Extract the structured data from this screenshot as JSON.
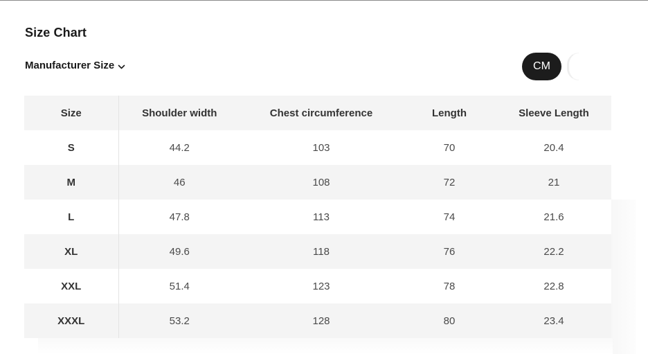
{
  "title": "Size Chart",
  "size_selector": {
    "label": "Manufacturer Size",
    "icon": "chevron-down-icon"
  },
  "unit_toggle": {
    "active_label": "CM",
    "active_bg": "#1c1c1c",
    "active_color": "#ffffff"
  },
  "table": {
    "headers": [
      "Size",
      "Shoulder width",
      "Chest circumference",
      "Length",
      "Sleeve Length"
    ],
    "rows": [
      [
        "S",
        "44.2",
        "103",
        "70",
        "20.4"
      ],
      [
        "M",
        "46",
        "108",
        "72",
        "21"
      ],
      [
        "L",
        "47.8",
        "113",
        "74",
        "21.6"
      ],
      [
        "XL",
        "49.6",
        "118",
        "76",
        "22.2"
      ],
      [
        "XXL",
        "51.4",
        "123",
        "78",
        "22.8"
      ],
      [
        "XXXL",
        "53.2",
        "128",
        "80",
        "23.4"
      ]
    ],
    "shade_color": "#f4f4f4"
  }
}
